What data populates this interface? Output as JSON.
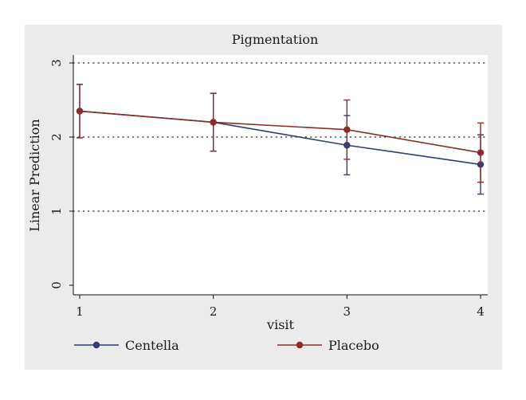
{
  "chart_data": {
    "type": "line",
    "title": "Pigmentation",
    "xlabel": "visit",
    "ylabel": "Linear Prediction",
    "x": [
      1,
      2,
      3,
      4
    ],
    "xlim": [
      1,
      4
    ],
    "ylim": [
      0,
      3
    ],
    "yticks": [
      0,
      1,
      2,
      3
    ],
    "grid": "horizontal dotted",
    "legend_position": "bottom",
    "series": [
      {
        "name": "Centella",
        "color": "#2e3f6e",
        "values": [
          2.35,
          2.2,
          1.89,
          1.63
        ],
        "ci_low": [
          1.99,
          1.81,
          1.49,
          1.23
        ],
        "ci_high": [
          2.71,
          2.59,
          2.29,
          2.03
        ]
      },
      {
        "name": "Placebo",
        "color": "#8b2c2c",
        "values": [
          2.35,
          2.2,
          2.1,
          1.79
        ],
        "ci_low": [
          1.99,
          1.81,
          1.7,
          1.39
        ],
        "ci_high": [
          2.71,
          2.59,
          2.5,
          2.19
        ]
      }
    ]
  }
}
